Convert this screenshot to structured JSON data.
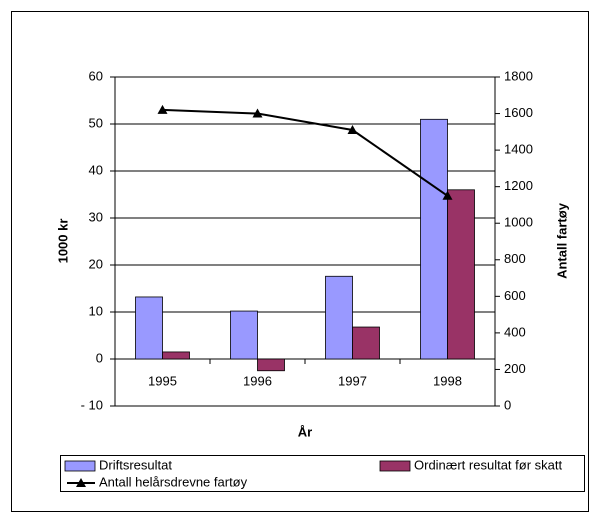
{
  "chart_data": {
    "type": "bar",
    "categories": [
      "1995",
      "1996",
      "1997",
      "1998"
    ],
    "series": [
      {
        "name": "Driftsresultat",
        "color": "#9999ff",
        "values": [
          13.2,
          10.2,
          17.6,
          51
        ]
      },
      {
        "name": "Ordinært resultat før skatt",
        "color": "#993366",
        "values": [
          1.5,
          -2.5,
          6.8,
          36
        ]
      },
      {
        "name": "Antall helårsdrevne fartøy",
        "type": "line",
        "color": "#000000",
        "axis": "y2",
        "values": [
          1620,
          1600,
          1510,
          1150
        ]
      }
    ],
    "xlabel": "År",
    "ylabel": "1000 kr",
    "y2label": "Antall fartøy",
    "ylim": [
      -10,
      60
    ],
    "yticks": [
      {
        "value": -10,
        "label": "- 10"
      },
      0,
      10,
      20,
      30,
      40,
      50,
      60
    ],
    "y2lim": [
      0,
      1800
    ],
    "y2ticks": [
      0,
      200,
      400,
      600,
      800,
      1000,
      1200,
      1400,
      1600,
      1800
    ],
    "grid": true,
    "legend": "bottom"
  }
}
